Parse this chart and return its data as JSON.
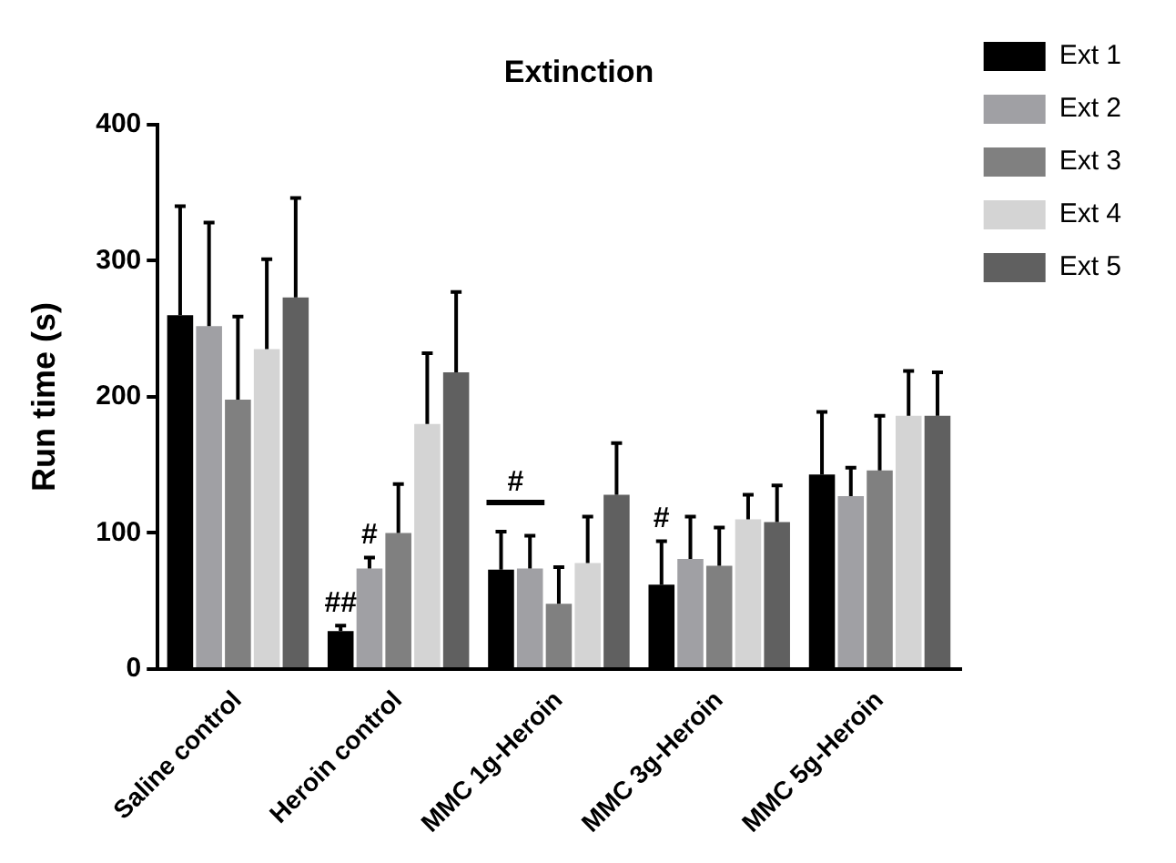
{
  "chart_data": {
    "type": "bar",
    "title": "Extinction",
    "ylabel": "Run time (s)",
    "categories": [
      "Saline control",
      "Heroin control",
      "MMC 1g-Heroin",
      "MMC 3g-Heroin",
      "MMC 5g-Heroin"
    ],
    "series": [
      {
        "name": "Ext 1",
        "color": "#000000",
        "values": [
          260,
          28,
          73,
          62,
          143
        ],
        "errors": [
          [
            260,
            340
          ],
          [
            28,
            32
          ],
          [
            73,
            101
          ],
          [
            62,
            94
          ],
          [
            143,
            189
          ]
        ]
      },
      {
        "name": "Ext 2",
        "color": "#a0a0a4",
        "values": [
          252,
          74,
          74,
          81,
          127
        ],
        "errors": [
          [
            252,
            328
          ],
          [
            74,
            82
          ],
          [
            74,
            98
          ],
          [
            81,
            112
          ],
          [
            127,
            148
          ]
        ]
      },
      {
        "name": "Ext 3",
        "color": "#808080",
        "values": [
          198,
          100,
          48,
          76,
          146
        ],
        "errors": [
          [
            198,
            259
          ],
          [
            100,
            136
          ],
          [
            48,
            75
          ],
          [
            76,
            104
          ],
          [
            146,
            186
          ]
        ]
      },
      {
        "name": "Ext 4",
        "color": "#d4d4d4",
        "values": [
          235,
          180,
          78,
          110,
          186
        ],
        "errors": [
          [
            235,
            301
          ],
          [
            180,
            232
          ],
          [
            78,
            112
          ],
          [
            110,
            128
          ],
          [
            186,
            219
          ]
        ]
      },
      {
        "name": "Ext 5",
        "color": "#606060",
        "values": [
          273,
          218,
          128,
          108,
          186
        ],
        "errors": [
          [
            273,
            346
          ],
          [
            218,
            277
          ],
          [
            128,
            166
          ],
          [
            108,
            135
          ],
          [
            186,
            218
          ]
        ]
      }
    ],
    "ylim": [
      0,
      400
    ],
    "yticks": [
      0,
      100,
      200,
      300,
      400
    ],
    "grid": false,
    "legend": "top right",
    "annotations": [
      "##",
      "#",
      "#",
      "#"
    ]
  }
}
